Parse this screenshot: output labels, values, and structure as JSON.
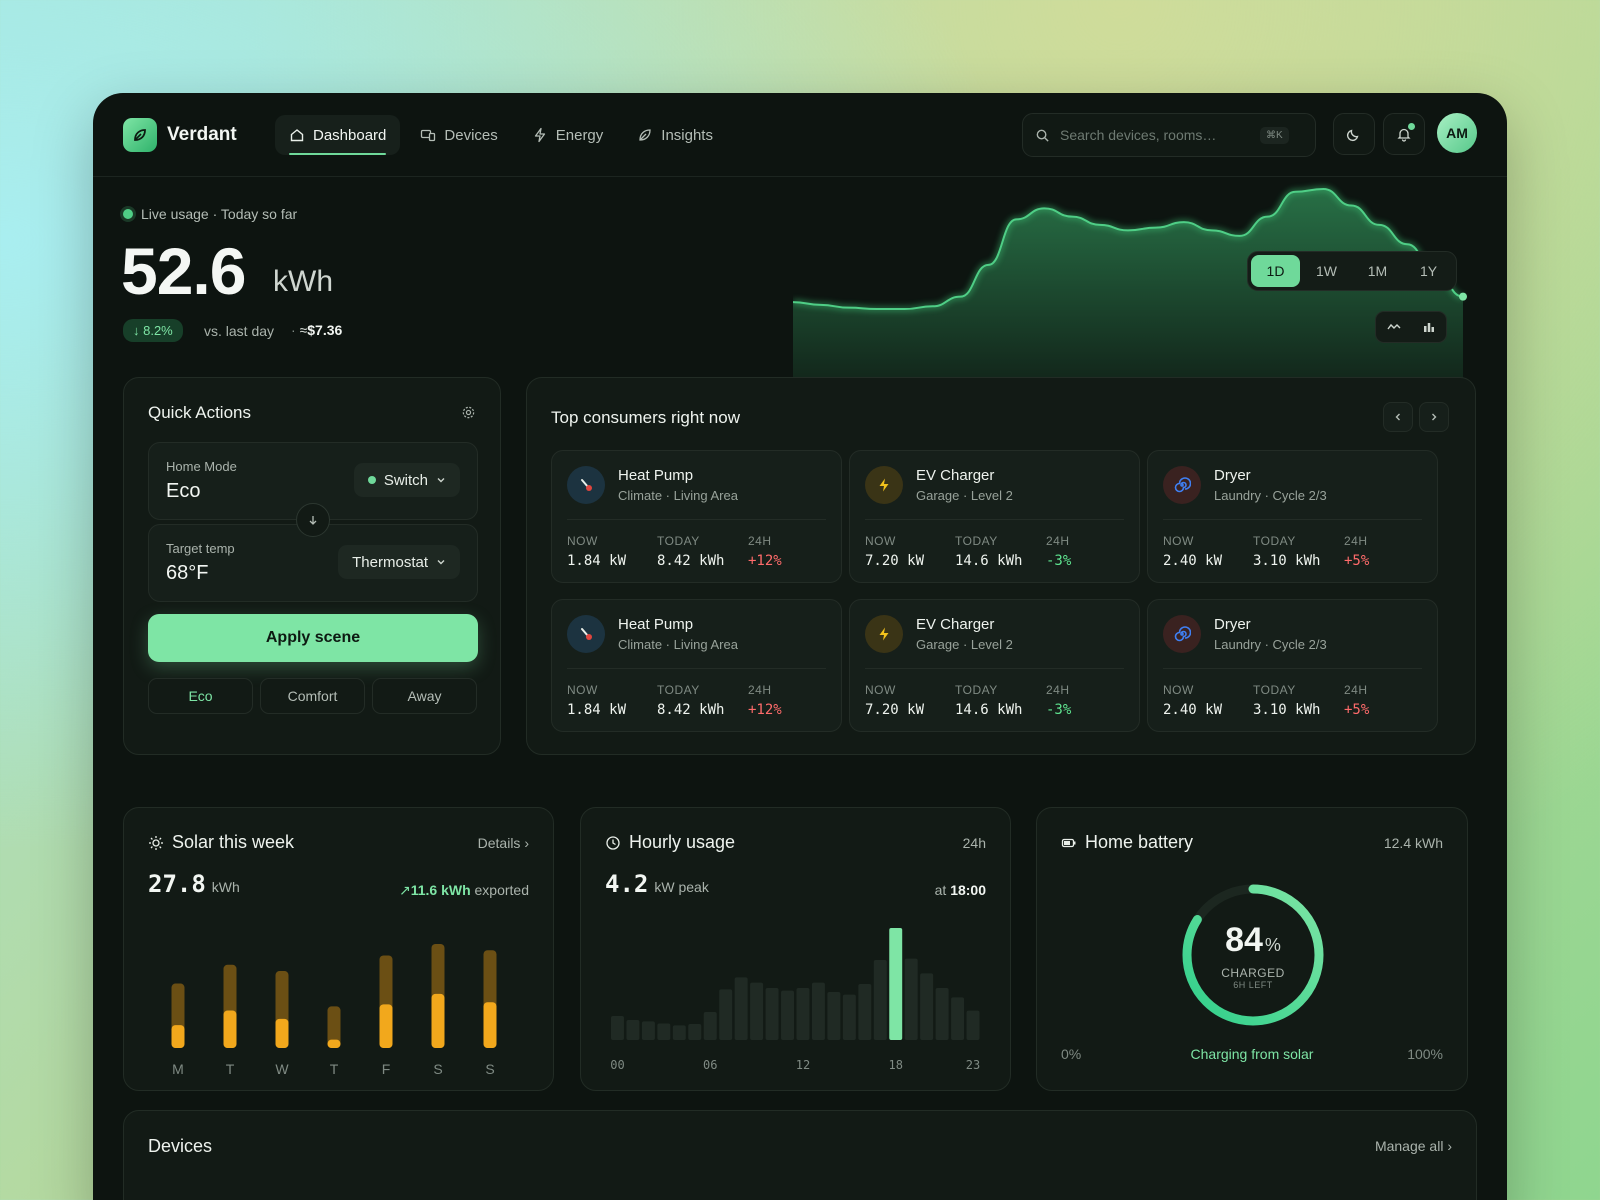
{
  "header": {
    "brand": "Verdant",
    "nav": [
      {
        "label": "Dashboard",
        "icon": "home-icon",
        "active": true
      },
      {
        "label": "Devices",
        "icon": "devices-icon"
      },
      {
        "label": "Energy",
        "icon": "bolt-icon"
      },
      {
        "label": "Insights",
        "icon": "leaf-icon"
      }
    ],
    "search_placeholder": "Search devices, rooms…",
    "search_shortcut": "⌘K",
    "avatar_initials": "AM"
  },
  "hero": {
    "live_label": "Live usage · Today so far",
    "usage_value": "52.6",
    "usage_unit": "kWh",
    "delta": "↓ 8.2%",
    "delta_label": "vs. last day",
    "cost_prefix": "≈",
    "cost": "$7.36",
    "ranges": [
      "1D",
      "1W",
      "1M",
      "1Y"
    ],
    "active_range": "1D",
    "chart_types": [
      "line-chart-icon",
      "bar-chart-icon"
    ]
  },
  "quick_actions": {
    "title": "Quick Actions",
    "home_mode_label": "Home Mode",
    "home_mode_value": "Eco",
    "home_mode_control": "Switch",
    "target_label": "Target temp",
    "target_value": "68°F",
    "target_control": "Thermostat",
    "apply_label": "Apply scene",
    "scenes": [
      "Eco",
      "Comfort",
      "Away"
    ],
    "active_scene": "Eco"
  },
  "top_consumers": {
    "title": "Top consumers right now",
    "stat_labels": [
      "NOW",
      "TODAY",
      "24H"
    ],
    "items": [
      {
        "name": "Heat Pump",
        "sub": "Climate · Living Area",
        "icon": "thermometer-icon",
        "now": "1.84 kW",
        "today": "8.42 kWh",
        "change": "+12%",
        "dir": "pos"
      },
      {
        "name": "EV Charger",
        "sub": "Garage · Level 2",
        "icon": "bolt-icon",
        "now": "7.20 kW",
        "today": "14.6 kWh",
        "change": "-3%",
        "dir": "neg"
      },
      {
        "name": "Dryer",
        "sub": "Laundry · Cycle 2/3",
        "icon": "spiral-icon",
        "now": "2.40 kW",
        "today": "3.10 kWh",
        "change": "+5%",
        "dir": "pos"
      },
      {
        "name": "Heat Pump",
        "sub": "Climate · Living Area",
        "icon": "thermometer-icon",
        "now": "1.84 kW",
        "today": "8.42 kWh",
        "change": "+12%",
        "dir": "pos"
      },
      {
        "name": "EV Charger",
        "sub": "Garage · Level 2",
        "icon": "bolt-icon",
        "now": "7.20 kW",
        "today": "14.6 kWh",
        "change": "-3%",
        "dir": "neg"
      },
      {
        "name": "Dryer",
        "sub": "Laundry · Cycle 2/3",
        "icon": "spiral-icon",
        "now": "2.40 kW",
        "today": "3.10 kWh",
        "change": "+5%",
        "dir": "pos"
      }
    ]
  },
  "solar": {
    "title": "Solar this week",
    "details_label": "Details",
    "total": "27.8",
    "unit": "kWh",
    "exported": "11.6 kWh",
    "exported_label": "exported"
  },
  "hourly": {
    "title": "Hourly usage",
    "range_label": "24h",
    "peak": "4.2",
    "peak_unit": "kW peak",
    "peak_at_label": "at",
    "peak_time": "18:00"
  },
  "battery": {
    "title": "Home battery",
    "capacity": "12.4 kWh",
    "percent": 84,
    "percent_text": "84",
    "percent_sign": "%",
    "status": "CHARGED",
    "time_left": "6H LEFT",
    "charging_label": "Charging from solar",
    "min_label": "0%",
    "max_label": "100%"
  },
  "devices": {
    "title": "Devices",
    "manage_label": "Manage all"
  },
  "chart_data": [
    {
      "type": "bar",
      "title": "Solar this week",
      "categories": [
        "M",
        "T",
        "W",
        "T",
        "F",
        "S",
        "S"
      ],
      "series": [
        {
          "name": "",
          "values": [
            0.62,
            0.8,
            0.74,
            0.4,
            0.89,
            1.0,
            0.94
          ]
        },
        {
          "name": "",
          "values": [
            0.22,
            0.36,
            0.28,
            0.08,
            0.42,
            0.52,
            0.44
          ]
        }
      ],
      "colors": [
        "#7a5a16",
        "#f2a81c"
      ]
    },
    {
      "type": "bar",
      "title": "Hourly usage",
      "x": [
        "00",
        "01",
        "02",
        "03",
        "04",
        "05",
        "06",
        "07",
        "08",
        "09",
        "10",
        "11",
        "12",
        "13",
        "14",
        "15",
        "16",
        "17",
        "18",
        "19",
        "20",
        "21",
        "22",
        "23"
      ],
      "x_tick_labels": [
        "00",
        "06",
        "12",
        "18",
        "23"
      ],
      "values": [
        0.9,
        0.75,
        0.7,
        0.62,
        0.55,
        0.6,
        1.05,
        1.9,
        2.35,
        2.15,
        1.95,
        1.85,
        1.95,
        2.15,
        1.8,
        1.7,
        2.1,
        3.0,
        4.2,
        3.05,
        2.5,
        1.95,
        1.6,
        1.1
      ],
      "ylim": [
        0,
        4.5
      ],
      "highlight": "18"
    },
    {
      "type": "area",
      "title": "",
      "series": [
        {
          "name": "",
          "values": [
            0.18,
            0.16,
            0.14,
            0.13,
            0.13,
            0.15,
            0.22,
            0.45,
            0.78,
            0.86,
            0.8,
            0.74,
            0.7,
            0.72,
            0.76,
            0.7,
            0.66,
            0.8,
            0.98,
            1.0,
            0.88,
            0.74,
            0.6,
            0.4,
            0.22
          ]
        }
      ],
      "ylim": [
        0,
        1
      ]
    }
  ]
}
